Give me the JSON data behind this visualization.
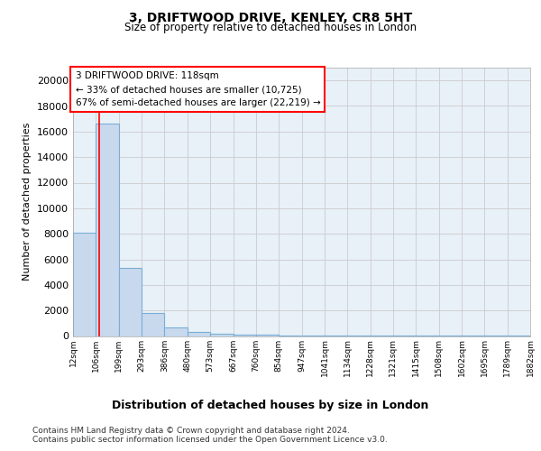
{
  "title": "3, DRIFTWOOD DRIVE, KENLEY, CR8 5HT",
  "subtitle": "Size of property relative to detached houses in London",
  "xlabel": "Distribution of detached houses by size in London",
  "ylabel": "Number of detached properties",
  "annotation_line1": "3 DRIFTWOOD DRIVE: 118sqm",
  "annotation_line2": "← 33% of detached houses are smaller (10,725)",
  "annotation_line3": "67% of semi-detached houses are larger (22,219) →",
  "footnote1": "Contains HM Land Registry data © Crown copyright and database right 2024.",
  "footnote2": "Contains public sector information licensed under the Open Government Licence v3.0.",
  "bar_color": "#c8d9ee",
  "bar_edge_color": "#7aaed4",
  "red_line_x": 118,
  "bin_edges": [
    12,
    106,
    199,
    293,
    386,
    480,
    573,
    667,
    760,
    854,
    947,
    1041,
    1134,
    1228,
    1321,
    1415,
    1508,
    1602,
    1695,
    1789,
    1882
  ],
  "bin_labels": [
    "12sqm",
    "106sqm",
    "199sqm",
    "293sqm",
    "386sqm",
    "480sqm",
    "573sqm",
    "667sqm",
    "760sqm",
    "854sqm",
    "947sqm",
    "1041sqm",
    "1134sqm",
    "1228sqm",
    "1321sqm",
    "1415sqm",
    "1508sqm",
    "1602sqm",
    "1695sqm",
    "1789sqm",
    "1882sqm"
  ],
  "bar_heights": [
    8050,
    16600,
    5300,
    1800,
    650,
    350,
    190,
    105,
    80,
    60,
    42,
    30,
    22,
    18,
    14,
    12,
    10,
    8,
    7,
    6
  ],
  "ylim": [
    0,
    21000
  ],
  "yticks": [
    0,
    2000,
    4000,
    6000,
    8000,
    10000,
    12000,
    14000,
    16000,
    18000,
    20000
  ],
  "annotation_box_edgecolor": "red",
  "grid_color": "#cccccc",
  "axes_bg": "#e8f0f8",
  "fig_bg": "#ffffff"
}
